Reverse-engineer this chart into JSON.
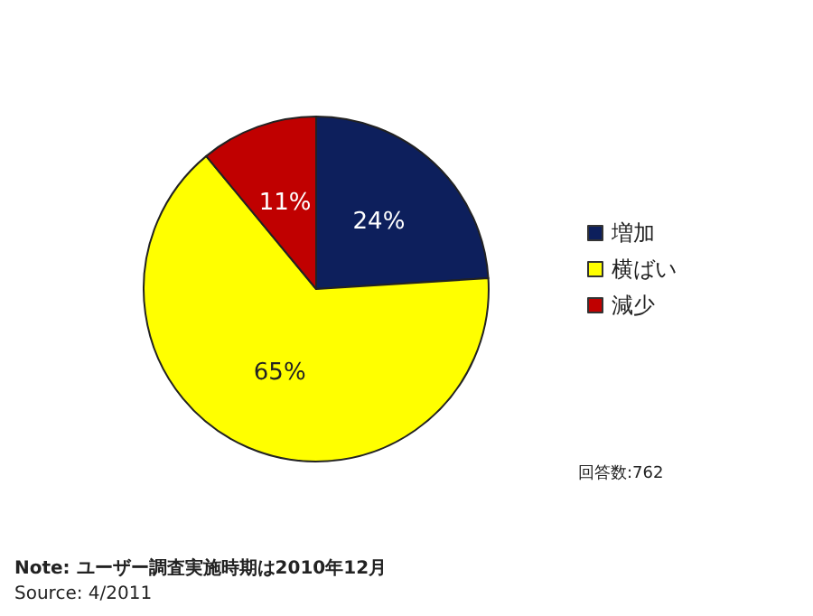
{
  "chart_data": {
    "type": "pie",
    "categories": [
      "増加",
      "横ばい",
      "減少"
    ],
    "values": [
      24,
      65,
      11
    ],
    "colors": [
      "#0d1f5c",
      "#ffff00",
      "#c00000"
    ],
    "value_labels": [
      "24%",
      "65%",
      "11%"
    ],
    "legend": "right",
    "annotations": [
      "回答数:762",
      "Note: ユーザー調査実施時期は2010年12月",
      "Source: 4/2011"
    ]
  }
}
